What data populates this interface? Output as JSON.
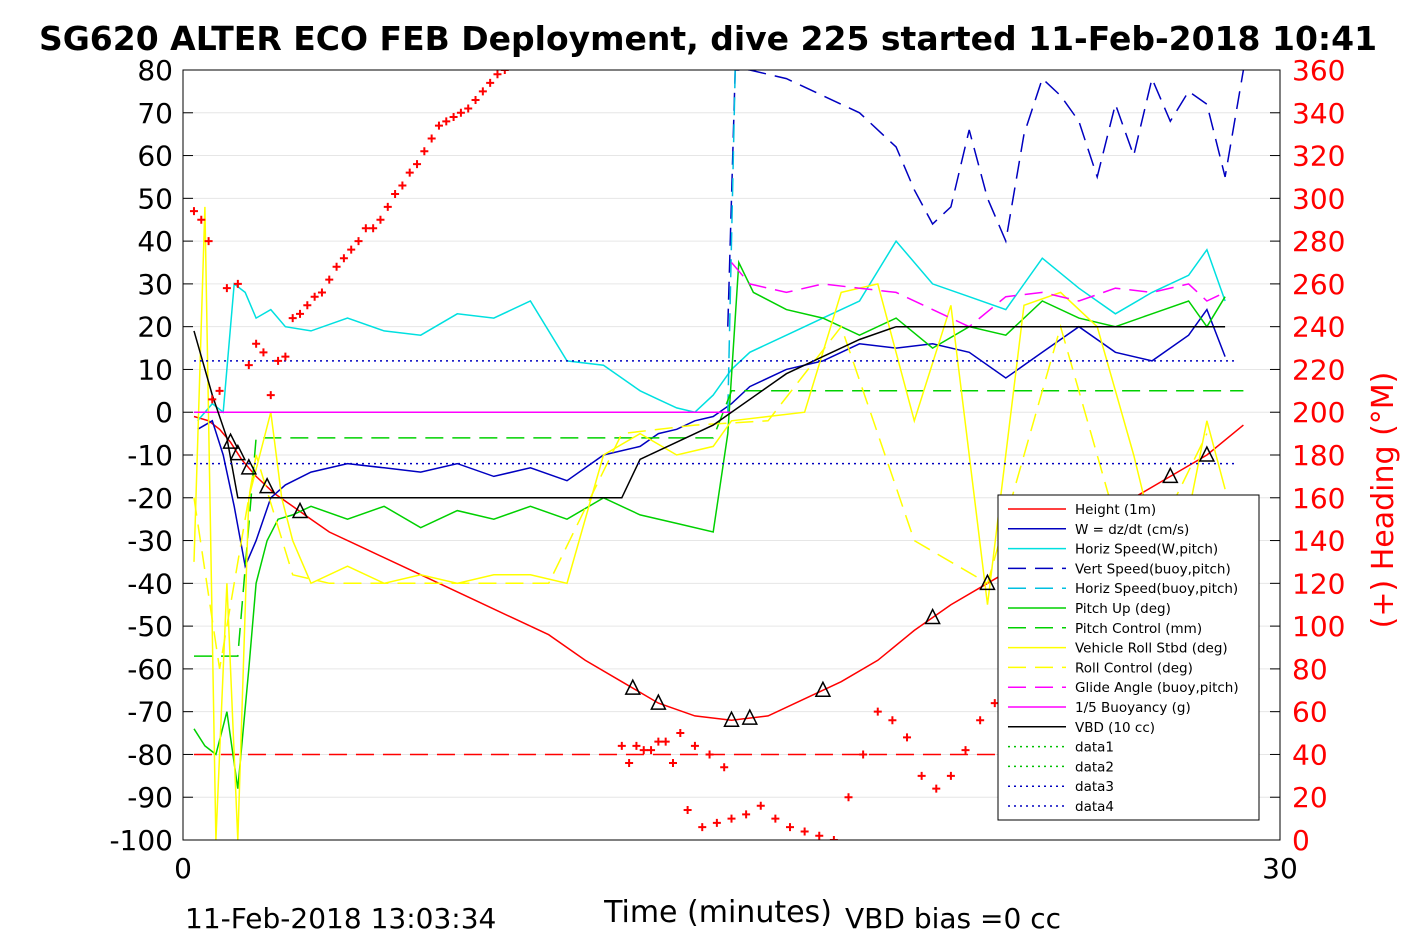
{
  "chart_data": {
    "type": "line",
    "title": "SG620 ALTER ECO FEB Deployment, dive 225 started 11-Feb-2018 10:41",
    "xlabel": "Time (minutes)",
    "ylabel": "",
    "y2label": "(+) Heading (°M)",
    "xlim": [
      0,
      30
    ],
    "ylim": [
      -100,
      80
    ],
    "y2lim": [
      0,
      360
    ],
    "xticks": [
      "0",
      "30"
    ],
    "yticks": [
      "80",
      "70",
      "60",
      "50",
      "40",
      "30",
      "20",
      "10",
      "0",
      "-10",
      "-20",
      "-30",
      "-40",
      "-50",
      "-60",
      "-70",
      "-80",
      "-90",
      "-100"
    ],
    "y2ticks": [
      "360",
      "340",
      "320",
      "300",
      "280",
      "260",
      "240",
      "220",
      "200",
      "180",
      "160",
      "140",
      "120",
      "100",
      "80",
      "60",
      "40",
      "20",
      "0"
    ],
    "grid": true,
    "legend_position": "right-lower",
    "footer_left": "11-Feb-2018 13:03:34",
    "footer_right": "VBD bias =0 cc",
    "colors": {
      "height": "#ff0000",
      "w": "#0000c0",
      "horiz": "#00e0e0",
      "pitch": "#00d000",
      "roll": "#ffff00",
      "glide": "#ff00ff",
      "vbd": "#000000",
      "heading": "#ff0000"
    },
    "series": [
      {
        "name": "Height (1m)",
        "color": "#ff0000",
        "style": "solid",
        "x": [
          0.3,
          0.7,
          1.0,
          1.3,
          1.6,
          2.0,
          2.5,
          3.0,
          3.5,
          4.0,
          5.0,
          6.0,
          7.0,
          8.0,
          9.0,
          10.0,
          11.0,
          12.0,
          13.0,
          14.0,
          15.0,
          16.0,
          17.0,
          18.0,
          19.0,
          20.0,
          21.0,
          22.0,
          23.0,
          24.0,
          25.0,
          26.0,
          27.0,
          28.0,
          29.0
        ],
        "y": [
          -1,
          -2,
          -4,
          -7,
          -11,
          -15,
          -19,
          -22,
          -25,
          -28,
          -32,
          -36,
          -40,
          -44,
          -48,
          -52,
          -58,
          -63,
          -68,
          -71,
          -72,
          -71,
          -67,
          -63,
          -58,
          -51,
          -45,
          -40,
          -35,
          -30,
          -25,
          -20,
          -15,
          -10,
          -3
        ],
        "y_real": [
          -1,
          -2,
          -4,
          -8,
          -12,
          -17,
          -21,
          -25,
          -28,
          -31,
          -36,
          -40,
          -44,
          -49,
          -53,
          -58,
          -62,
          -64,
          -68,
          -71,
          -72,
          -70,
          -64,
          -58,
          -53,
          -48,
          -42,
          -40,
          -35,
          -30,
          -25,
          -21,
          -16,
          -11,
          0
        ]
      },
      {
        "name": "W = dz/dt (cm/s)",
        "color": "#0000c0",
        "style": "solid",
        "x": [
          0.4,
          0.8,
          1.1,
          1.4,
          1.7,
          2.0,
          2.4,
          2.8,
          3.5,
          4.5,
          5.5,
          6.5,
          7.5,
          8.5,
          9.5,
          10.5,
          11.5,
          12.5,
          13.0,
          13.5,
          14.0,
          14.5,
          15.0,
          15.5,
          16.5,
          17.5,
          18.5,
          19.5,
          20.5,
          21.5,
          22.5,
          23.5,
          24.5,
          25.5,
          26.5,
          27.5,
          28.0,
          28.5
        ],
        "y": [
          -4,
          -2,
          -10,
          -22,
          -36,
          -30,
          -20,
          -17,
          -14,
          -12,
          -13,
          -14,
          -12,
          -15,
          -13,
          -16,
          -10,
          -8,
          -5,
          -4,
          -2,
          -1,
          2,
          6,
          10,
          12,
          16,
          15,
          16,
          14,
          8,
          14,
          20,
          14,
          12,
          18,
          24,
          13
        ]
      },
      {
        "name": "Horiz Speed(W,pitch)",
        "color": "#00e0e0",
        "style": "solid",
        "x": [
          0.4,
          0.8,
          1.1,
          1.4,
          1.7,
          2.0,
          2.4,
          2.8,
          3.5,
          4.5,
          5.5,
          6.5,
          7.5,
          8.5,
          9.5,
          10.5,
          11.5,
          12.5,
          13.0,
          13.5,
          14.0,
          14.5,
          15.0,
          15.5,
          16.5,
          17.5,
          18.5,
          19.5,
          20.5,
          21.5,
          22.5,
          23.5,
          24.5,
          25.5,
          26.5,
          27.5,
          28.0,
          28.5
        ],
        "y": [
          -2,
          2,
          0,
          30,
          28,
          22,
          24,
          20,
          19,
          22,
          19,
          18,
          23,
          22,
          26,
          12,
          11,
          5,
          3,
          1,
          0,
          4,
          10,
          14,
          18,
          22,
          26,
          40,
          30,
          27,
          24,
          36,
          29,
          23,
          28,
          32,
          38,
          26
        ]
      },
      {
        "name": "Vert Speed(buoy,pitch)",
        "color": "#0000c0",
        "style": "dashed",
        "x": [
          14.9,
          15.1,
          15.5,
          16.5,
          17.5,
          18.5,
          19.5,
          20.0,
          20.5,
          21.0,
          21.5,
          22.0,
          22.5,
          23.0,
          23.5,
          24.0,
          24.5,
          25.0,
          25.5,
          26.0,
          26.5,
          27.0,
          27.5,
          28.0,
          28.5,
          29.0
        ],
        "y": [
          20,
          80,
          80,
          78,
          74,
          70,
          62,
          52,
          44,
          48,
          66,
          50,
          40,
          65,
          78,
          74,
          68,
          55,
          72,
          60,
          78,
          68,
          75,
          72,
          55,
          80
        ]
      },
      {
        "name": "Horiz Speed(buoy,pitch)",
        "color": "#00c0e0",
        "style": "dashed",
        "x": [
          14.9,
          15.0,
          15.1
        ],
        "y": [
          0,
          40,
          80
        ]
      },
      {
        "name": "Pitch Up (deg)",
        "color": "#00d000",
        "style": "solid",
        "x": [
          0.3,
          0.6,
          0.9,
          1.2,
          1.5,
          1.8,
          2.0,
          2.3,
          2.6,
          3.0,
          3.5,
          4.5,
          5.5,
          6.5,
          7.5,
          8.5,
          9.5,
          10.5,
          11.5,
          12.5,
          13.5,
          14.5,
          14.9,
          15.2,
          15.6,
          16.5,
          17.5,
          18.5,
          19.5,
          20.5,
          21.5,
          22.5,
          23.5,
          24.5,
          25.5,
          26.5,
          27.5,
          28.0,
          28.5
        ],
        "y": [
          -74,
          -78,
          -80,
          -70,
          -88,
          -60,
          -40,
          -30,
          -25,
          -24,
          -22,
          -25,
          -22,
          -27,
          -23,
          -25,
          -22,
          -25,
          -20,
          -24,
          -26,
          -28,
          -5,
          35,
          28,
          24,
          22,
          18,
          22,
          15,
          20,
          18,
          26,
          22,
          20,
          23,
          26,
          20,
          27
        ]
      },
      {
        "name": "Pitch Control (mm)",
        "color": "#00d000",
        "style": "dashed",
        "x": [
          0.3,
          1.5,
          2.0,
          8.0,
          8.5,
          14.5,
          15.0,
          20.0,
          29.0
        ],
        "y": [
          -57,
          -57,
          -6,
          -6,
          -6,
          -6,
          5,
          5,
          5
        ]
      },
      {
        "name": "Vehicle Roll Stbd (deg)",
        "color": "#ffff00",
        "style": "solid",
        "x": [
          0.3,
          0.6,
          0.9,
          1.2,
          1.5,
          1.8,
          2.1,
          2.4,
          2.7,
          3.0,
          3.5,
          4.5,
          5.5,
          6.5,
          7.5,
          8.5,
          9.5,
          10.5,
          11.5,
          12.5,
          13.5,
          14.5,
          15.0,
          16.0,
          17.0,
          18.0,
          19.0,
          20.0,
          21.0,
          22.0,
          23.0,
          24.0,
          25.0,
          26.0,
          27.0,
          28.0,
          28.5
        ],
        "y": [
          -35,
          48,
          -100,
          -40,
          -100,
          -20,
          -10,
          0,
          -20,
          -30,
          -40,
          -36,
          -40,
          -38,
          -40,
          -38,
          -38,
          -40,
          -10,
          -5,
          -10,
          -8,
          -2,
          -1,
          0,
          28,
          30,
          -2,
          25,
          -45,
          25,
          28,
          20,
          -10,
          -45,
          -2,
          -18
        ]
      },
      {
        "name": "Roll Control (deg)",
        "color": "#ffff00",
        "style": "dashed",
        "x": [
          0.3,
          1.0,
          2.0,
          3.0,
          4.0,
          6.0,
          8.0,
          10.0,
          12.0,
          14.0,
          16.0,
          18.0,
          20.0,
          22.0,
          24.0,
          26.0,
          28.0
        ],
        "y": [
          -20,
          -60,
          -10,
          -38,
          -40,
          -40,
          -40,
          -40,
          -5,
          -3,
          -2,
          20,
          -30,
          -40,
          20,
          -40,
          -5
        ]
      },
      {
        "name": "Glide Angle (buoy,pitch)",
        "color": "#ff00ff",
        "style": "dashed",
        "x": [
          15.0,
          15.5,
          16.5,
          17.5,
          18.5,
          19.5,
          20.5,
          21.5,
          22.5,
          23.5,
          24.5,
          25.5,
          26.5,
          27.5,
          28.0,
          28.5
        ],
        "y": [
          35,
          30,
          28,
          30,
          29,
          28,
          24,
          20,
          27,
          28,
          26,
          29,
          28,
          30,
          26,
          28
        ]
      },
      {
        "name": "1/5 Buoyancy (g)",
        "color": "#ff00ff",
        "style": "solid",
        "x": [
          0.3,
          15.0
        ],
        "y": [
          0,
          0
        ]
      },
      {
        "name": "VBD (10 cc)",
        "color": "#000000",
        "style": "solid",
        "x": [
          0.3,
          0.8,
          1.2,
          1.5,
          1.8,
          2.0,
          2.5,
          4.0,
          6.0,
          8.0,
          10.0,
          12.0,
          12.5,
          14.5,
          15.0,
          16.5,
          17.5,
          18.5,
          19.5,
          20.5,
          21.5,
          22.5,
          23.5,
          24.5,
          25.5,
          26.5,
          27.5,
          28.5
        ],
        "y": [
          19,
          4,
          -6,
          -20,
          -20,
          -20,
          -20,
          -20,
          -20,
          -20,
          -20,
          -20,
          -11,
          -3,
          0,
          9,
          13,
          17,
          20,
          20,
          20,
          20,
          20,
          20,
          20,
          20,
          20,
          20
        ]
      },
      {
        "name": "data1",
        "color": "#00c000",
        "style": "dotted",
        "x": [],
        "y": []
      },
      {
        "name": "data2",
        "color": "#00c000",
        "style": "dotted",
        "x": [],
        "y": []
      },
      {
        "name": "data3",
        "color": "#0000c0",
        "style": "dotted",
        "x": [
          0.3,
          28.8
        ],
        "y": [
          12,
          12
        ]
      },
      {
        "name": "data4",
        "color": "#0000c0",
        "style": "dotted",
        "x": [
          0.3,
          28.8
        ],
        "y": [
          -12,
          -12
        ]
      }
    ],
    "reference_lines": [
      {
        "color": "#ff0000",
        "style": "dashed",
        "y": -80,
        "x": [
          0.3,
          28.8
        ]
      },
      {
        "color": "#8000ff",
        "style": "dashed",
        "y": 0,
        "x": [
          0.3,
          15.0
        ]
      }
    ],
    "heading_series": {
      "name": "(+) Heading (°M)",
      "color": "#ff0000",
      "marker": "+",
      "x": [
        0.3,
        0.5,
        0.7,
        0.8,
        1.0,
        1.2,
        1.5,
        1.8,
        2.0,
        2.2,
        2.4,
        2.6,
        2.8,
        3.0,
        3.2,
        3.4,
        3.6,
        3.8,
        4.0,
        4.2,
        4.4,
        4.6,
        4.8,
        5.0,
        5.2,
        5.4,
        5.6,
        5.8,
        6.0,
        6.2,
        6.4,
        6.6,
        6.8,
        7.0,
        7.2,
        7.4,
        7.6,
        7.8,
        8.0,
        8.2,
        8.4,
        8.6,
        8.8,
        9.0,
        9.2,
        9.4,
        9.6,
        9.8,
        10.0,
        10.2,
        10.4,
        10.6,
        12.2,
        12.6,
        13.0,
        13.4,
        13.8,
        14.2,
        14.6,
        15.0,
        15.4,
        15.8,
        16.2,
        16.6,
        17.0,
        17.4,
        17.8,
        18.2,
        18.6,
        19.0,
        19.4,
        19.8,
        20.2,
        20.6,
        21.0,
        21.4,
        21.8,
        22.2,
        22.6,
        23.0,
        23.4,
        23.8,
        24.2,
        24.6,
        25.0,
        25.4,
        25.8,
        26.2,
        26.6,
        27.0,
        27.4,
        27.8,
        28.0,
        28.2,
        28.4,
        28.6,
        12.0,
        12.4,
        12.8,
        13.2,
        13.6,
        14.0,
        14.4,
        14.8
      ],
      "y": [
        294,
        290,
        280,
        206,
        210,
        258,
        260,
        222,
        232,
        228,
        208,
        224,
        226,
        244,
        246,
        250,
        254,
        256,
        262,
        268,
        272,
        276,
        280,
        286,
        286,
        290,
        296,
        302,
        306,
        312,
        316,
        322,
        328,
        334,
        336,
        338,
        340,
        342,
        346,
        350,
        354,
        358,
        360,
        362,
        364,
        366,
        368,
        370,
        372,
        374,
        376,
        378,
        36,
        42,
        46,
        36,
        14,
        6,
        8,
        10,
        12,
        16,
        10,
        6,
        4,
        2,
        0,
        20,
        40,
        60,
        56,
        48,
        30,
        24,
        30,
        42,
        56,
        64,
        52,
        48,
        44,
        40,
        58,
        60,
        62,
        54,
        36,
        28,
        44,
        34,
        30,
        26,
        22,
        40,
        48,
        50,
        44,
        44,
        42,
        46,
        50,
        44,
        40,
        34
      ]
    }
  }
}
